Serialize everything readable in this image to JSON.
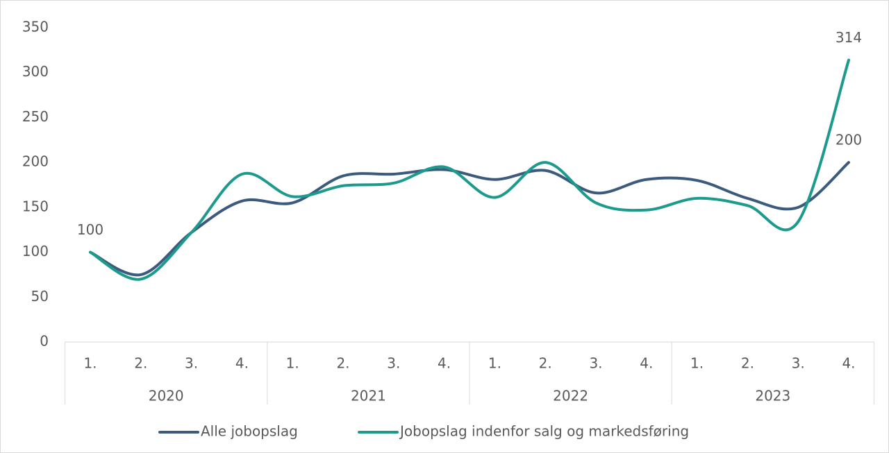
{
  "chart_data": {
    "type": "line",
    "categories": [
      "1.",
      "2.",
      "3.",
      "4.",
      "1.",
      "2.",
      "3.",
      "4.",
      "1.",
      "2.",
      "3.",
      "4.",
      "1.",
      "2.",
      "3.",
      "4."
    ],
    "groups": [
      "2020",
      "2021",
      "2022",
      "2023"
    ],
    "series": [
      {
        "name": "Alle jobopslag",
        "color": "#3b5a7d",
        "values": [
          100,
          75,
          122,
          157,
          155,
          185,
          187,
          192,
          181,
          191,
          166,
          181,
          180,
          160,
          150,
          200
        ]
      },
      {
        "name": "Jobopslag indenfor salg og markedsføring",
        "color": "#1c9a8c",
        "values": [
          100,
          70,
          122,
          187,
          162,
          174,
          177,
          195,
          161,
          200,
          155,
          147,
          160,
          152,
          134,
          314
        ]
      }
    ],
    "data_labels": [
      "chart_data.series.0.values.0",
      "chart_data.series.1.values.15",
      "chart_data.series.0.values.15"
    ],
    "ylim": [
      0,
      350
    ],
    "yticks": [
      0,
      50,
      100,
      150,
      200,
      250,
      300,
      350
    ],
    "grid": false,
    "legend": "bottom"
  }
}
